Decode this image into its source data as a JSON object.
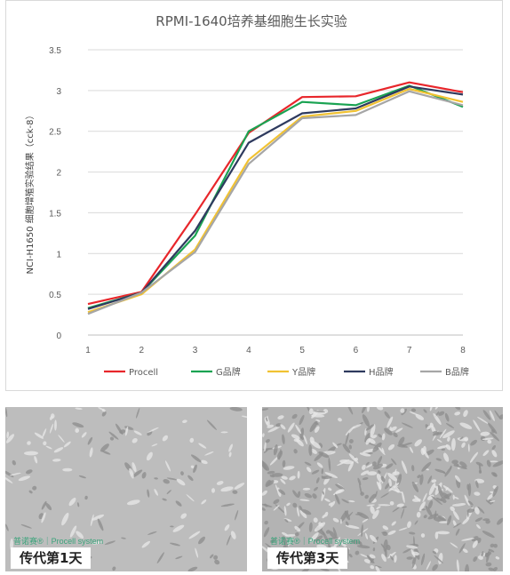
{
  "chart_data": {
    "type": "line",
    "title": "RPMI-1640培养基细胞生长实验",
    "ylabel": "NCI-H1650 细胞增殖实验结果（cck-8）",
    "xlabel": "",
    "x": [
      1,
      2,
      3,
      4,
      5,
      6,
      7,
      8
    ],
    "xlim": [
      1,
      8
    ],
    "ylim": [
      0,
      3.5
    ],
    "yticks": [
      "0",
      "0.5",
      "1",
      "1.5",
      "2",
      "2.5",
      "3",
      "3.5"
    ],
    "grid": true,
    "legend_position": "bottom",
    "series": [
      {
        "name": "Procell",
        "color": "#e8262b",
        "values": [
          0.38,
          0.53,
          1.48,
          2.48,
          2.92,
          2.93,
          3.1,
          2.98
        ]
      },
      {
        "name": "G品牌",
        "color": "#1aa352",
        "values": [
          0.33,
          0.52,
          1.22,
          2.5,
          2.86,
          2.82,
          3.06,
          2.8
        ]
      },
      {
        "name": "Y品牌",
        "color": "#f1c232",
        "values": [
          0.28,
          0.5,
          1.05,
          2.15,
          2.68,
          2.75,
          3.02,
          2.86
        ]
      },
      {
        "name": "H品牌",
        "color": "#2e3a5e",
        "values": [
          0.32,
          0.52,
          1.28,
          2.36,
          2.72,
          2.78,
          3.05,
          2.95
        ]
      },
      {
        "name": "B品牌",
        "color": "#a6a6a6",
        "values": [
          0.26,
          0.52,
          1.02,
          2.1,
          2.66,
          2.7,
          2.99,
          2.82
        ]
      }
    ]
  },
  "photos": [
    {
      "caption": "传代第1天",
      "watermark": "普诺赛®｜Procell system"
    },
    {
      "caption": "传代第3天",
      "watermark": "普诺赛®｜Procell system"
    }
  ]
}
